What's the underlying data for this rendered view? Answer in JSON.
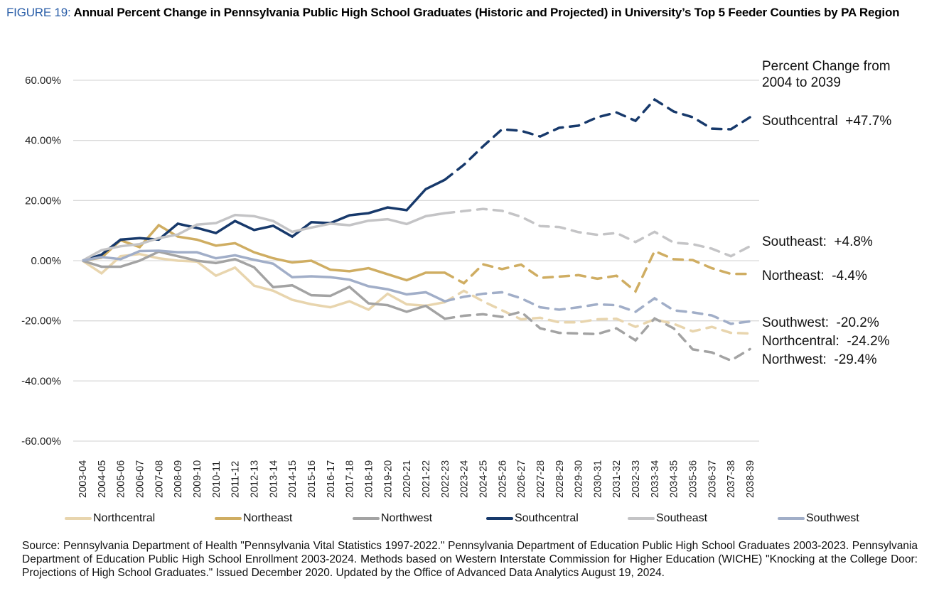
{
  "title": {
    "figure_label": "FIGURE 19:",
    "text": " Annual Percent Change in Pennsylvania Public High School Graduates (Historic and Projected) in University’s Top 5 Feeder Counties by PA Region"
  },
  "annotations": {
    "header": "Percent Change from\n2004 to 2039",
    "items": [
      {
        "label": "Southcentral  +47.7%"
      },
      {
        "label": "Southeast:  +4.8%"
      },
      {
        "label": "Northeast:  -4.4%"
      },
      {
        "label": "Southwest:  -20.2%"
      },
      {
        "label": "Northcentral:  -24.2%"
      },
      {
        "label": "Northwest:  -29.4%"
      }
    ]
  },
  "source": "Source: Pennsylvania Department of Health \"Pennsylvania Vital Statistics 1997-2022.\" Pennsylvania Department of Education Public High School Graduates 2003-2023. Pennsylvania Department of Education Public High School Enrollment 2003-2024. Methods based on Western Interstate Commission for Higher Education (WICHE) \"Knocking at the College Door: Projections of High School Graduates.\" Issued December 2020. Updated by the Office of Advanced Data Analytics August 19, 2024.",
  "chart_data": {
    "type": "line",
    "title": "Annual Percent Change in Pennsylvania Public High School Graduates (Historic and Projected) in University’s Top 5 Feeder Counties by PA Region",
    "xlabel": "",
    "ylabel": "",
    "ylim": [
      -60,
      60
    ],
    "yticks": [
      60,
      40,
      20,
      0,
      -20,
      -40,
      -60
    ],
    "ytick_labels": [
      "60.00%",
      "40.00%",
      "20.00%",
      "0.00%",
      "-20.00%",
      "-40.00%",
      "-60.00%"
    ],
    "grid": true,
    "legend_position": "bottom",
    "projection_starts_after": "2022-23",
    "categories": [
      "2003-04",
      "2004-05",
      "2005-06",
      "2006-07",
      "2007-08",
      "2008-09",
      "2009-10",
      "2010-11",
      "2011-12",
      "2012-13",
      "2013-14",
      "2014-15",
      "2015-16",
      "2016-17",
      "2017-18",
      "2018-19",
      "2019-20",
      "2020-21",
      "2021-22",
      "2022-23",
      "2023-24",
      "2024-25",
      "2025-26",
      "2026-27",
      "2027-28",
      "2028-29",
      "2029-30",
      "2030-31",
      "2031-32",
      "2032-33",
      "2033-34",
      "2034-35",
      "2035-36",
      "2036-37",
      "2037-38",
      "2038-39"
    ],
    "series": [
      {
        "name": "Northcentral",
        "color": "#e8d5ae",
        "values": [
          0,
          -4.2,
          1.5,
          2.2,
          0.8,
          0,
          -0.3,
          -5,
          -2.3,
          -8.3,
          -10,
          -13,
          -14.5,
          -15.5,
          -13.5,
          -16.3,
          -11,
          -14.5,
          -15,
          -13.8,
          -10,
          -13.5,
          -16.5,
          -19.5,
          -19,
          -20.5,
          -20.5,
          -19.5,
          -19.3,
          -22,
          -19.5,
          -21,
          -23.5,
          -22,
          -24,
          -24.2
        ]
      },
      {
        "name": "Northeast",
        "color": "#cfad62",
        "values": [
          0,
          1,
          6.8,
          4.5,
          11.8,
          8,
          7,
          5,
          5.8,
          2.8,
          0.8,
          -0.6,
          0,
          -3,
          -3.5,
          -2.5,
          -4.5,
          -6.5,
          -4,
          -4,
          -7.5,
          -1.2,
          -2.8,
          -1.3,
          -5.7,
          -5.3,
          -4.8,
          -6,
          -5,
          -10.2,
          3.2,
          0.5,
          0.2,
          -2.5,
          -4.4,
          -4.4
        ]
      },
      {
        "name": "Northwest",
        "color": "#a3a3a3",
        "values": [
          0,
          -2,
          -2,
          0,
          3,
          1.5,
          0,
          -0.8,
          0.5,
          -2.2,
          -8.8,
          -8.2,
          -11.5,
          -11.7,
          -8.7,
          -14.2,
          -14.8,
          -17,
          -15,
          -19.3,
          -18.3,
          -17.8,
          -18.7,
          -17,
          -22.5,
          -24,
          -24.2,
          -24.4,
          -22.5,
          -26.5,
          -19.2,
          -22.5,
          -29.5,
          -30.5,
          -33.2,
          -29.4
        ]
      },
      {
        "name": "Southcentral",
        "color": "#17396b",
        "values": [
          0,
          2,
          7,
          7.5,
          7,
          12.3,
          10.9,
          9.2,
          13.2,
          10.2,
          11.6,
          8,
          12.8,
          12.5,
          15.1,
          15.8,
          17.7,
          16.8,
          23.8,
          26.9,
          31.9,
          38,
          43.7,
          43.2,
          41.3,
          44.2,
          44.9,
          47.7,
          49.3,
          46.5,
          53.6,
          49.6,
          47.7,
          43.9,
          43.7,
          47.7
        ]
      },
      {
        "name": "Southeast",
        "color": "#c4c4c6",
        "values": [
          0,
          3.5,
          4.8,
          5.5,
          7.5,
          8.7,
          12,
          12.5,
          15.2,
          14.8,
          13.2,
          9.6,
          11,
          12.3,
          11.8,
          13.3,
          13.8,
          12.2,
          14.8,
          15.8,
          16.5,
          17.2,
          16.6,
          14.6,
          11.5,
          11.2,
          9.5,
          8.6,
          9.2,
          6.2,
          9.6,
          6,
          5.5,
          4,
          1.5,
          4.8
        ]
      },
      {
        "name": "Southwest",
        "color": "#a1aec8",
        "values": [
          0,
          1.2,
          0.5,
          3.2,
          3.3,
          2.8,
          2.8,
          0.8,
          1.8,
          0.3,
          -1,
          -5.5,
          -5.2,
          -5.5,
          -6.3,
          -8.5,
          -9.5,
          -11.2,
          -10.5,
          -13.5,
          -12,
          -11,
          -10.5,
          -12.5,
          -15.5,
          -16.3,
          -15.5,
          -14.5,
          -14.8,
          -17,
          -12.5,
          -16.5,
          -17.2,
          -18.2,
          -21,
          -20.2
        ]
      }
    ]
  }
}
